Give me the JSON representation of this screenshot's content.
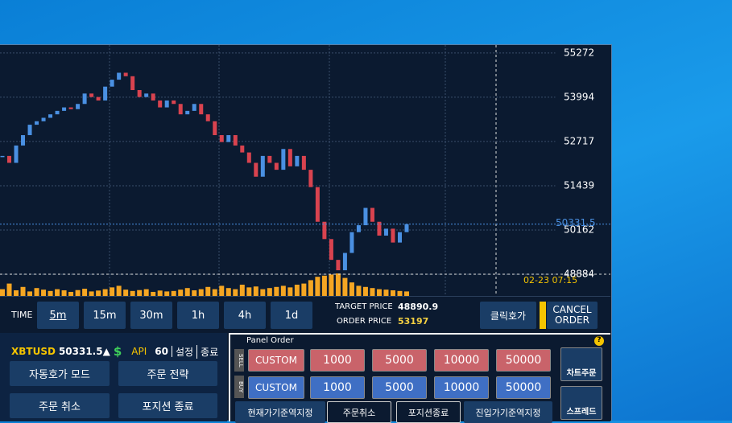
{
  "chart_data": {
    "type": "candlestick",
    "closes": [
      52300,
      52100,
      52600,
      52900,
      53200,
      53300,
      53400,
      53500,
      53600,
      53700,
      53650,
      53800,
      54100,
      54000,
      53900,
      54300,
      54500,
      54700,
      54600,
      54200,
      54000,
      54100,
      53900,
      53700,
      53900,
      53800,
      53500,
      53600,
      53800,
      53500,
      53300,
      52900,
      52700,
      52900,
      52600,
      52400,
      52100,
      51700,
      52300,
      52100,
      51900,
      52500,
      52000,
      52300,
      51900,
      51400,
      50400,
      49900,
      49300,
      49000,
      49500,
      50100,
      50300,
      50800,
      50400,
      50000,
      50200,
      49800,
      50100,
      50331.5
    ],
    "volume": [
      30,
      55,
      25,
      40,
      20,
      35,
      28,
      22,
      30,
      25,
      18,
      26,
      32,
      20,
      24,
      30,
      38,
      45,
      28,
      22,
      26,
      30,
      18,
      24,
      20,
      22,
      28,
      35,
      25,
      30,
      40,
      30,
      45,
      35,
      30,
      50,
      38,
      42,
      30,
      35,
      40,
      45,
      38,
      50,
      55,
      70,
      85,
      90,
      95,
      100,
      80,
      60,
      45,
      40,
      35,
      30,
      28,
      25,
      22,
      20
    ],
    "volume_lim": [
      0,
      100
    ],
    "ylim": [
      48700,
      55500
    ],
    "yticks": [
      48884,
      50162,
      51439,
      52717,
      53994,
      55272
    ],
    "last_price": 50331.5,
    "last_time": "02-23 07:15",
    "grid": true,
    "up_color": "#4a90e2",
    "down_color": "#d9434f",
    "volume_color": "#f5a623"
  },
  "toolbar": {
    "time_label": "TIME",
    "intervals": [
      "5m",
      "15m",
      "30m",
      "1h",
      "4h",
      "1d"
    ],
    "target_price_label": "TARGET PRICE",
    "target_price": 48890.9,
    "order_price_label": "ORDER PRICE",
    "order_price": 53197,
    "click_order": "클릭호가",
    "cancel_order": "CANCEL ORDER"
  },
  "account": {
    "symbol": "XBTUSD",
    "price": 50331.5,
    "trend": "▲",
    "currency_icon": "$",
    "api_label": "API",
    "api_value": 60,
    "settings": "설정",
    "exit": "종료",
    "buttons": [
      "자동호가 모드",
      "주문 전략",
      "주문 취소",
      "포지션 종료"
    ]
  },
  "panel_order": {
    "title": "Panel Order",
    "sell_label": "SELL",
    "buy_label": "BUY",
    "sell": [
      "CUSTOM",
      "1000",
      "5000",
      "10000",
      "50000"
    ],
    "buy": [
      "CUSTOM",
      "1000",
      "5000",
      "10000",
      "50000"
    ],
    "actions": [
      "현재가기준역지정",
      "주문취소",
      "포지션종료",
      "진입가기준역지정"
    ],
    "side_buttons": [
      "차트주문",
      "스프레드"
    ],
    "help": "?"
  }
}
